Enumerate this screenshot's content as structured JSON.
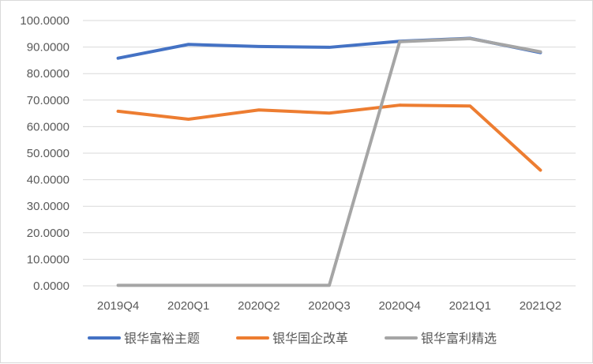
{
  "chart_data": {
    "type": "line",
    "title": "",
    "xlabel": "",
    "ylabel": "",
    "categories": [
      "2019Q4",
      "2020Q1",
      "2020Q2",
      "2020Q3",
      "2020Q4",
      "2021Q1",
      "2021Q2"
    ],
    "yticks": [
      "0.0000",
      "10.0000",
      "20.0000",
      "30.0000",
      "40.0000",
      "50.0000",
      "60.0000",
      "70.0000",
      "80.0000",
      "90.0000",
      "100.0000"
    ],
    "ylim": [
      0,
      100
    ],
    "grid": true,
    "legend_position": "bottom",
    "series": [
      {
        "name": "银华富裕主题",
        "color": "#4472C4",
        "values": [
          85.8,
          91.0,
          90.2,
          89.9,
          92.2,
          93.3,
          87.9
        ]
      },
      {
        "name": "银华国企改革",
        "color": "#ED7D31",
        "values": [
          65.8,
          62.8,
          66.3,
          65.1,
          68.1,
          67.8,
          43.6
        ]
      },
      {
        "name": "银华富利精选",
        "color": "#A5A5A5",
        "values": [
          0.2,
          0.2,
          0.2,
          0.2,
          92.0,
          93.2,
          88.2
        ]
      }
    ]
  }
}
